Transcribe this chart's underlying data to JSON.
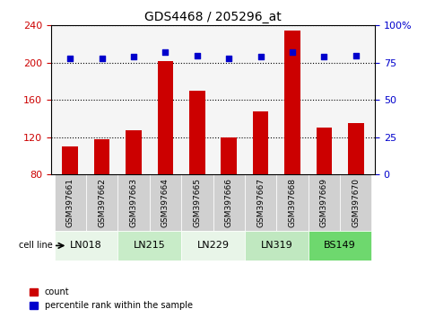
{
  "title": "GDS4468 / 205296_at",
  "samples": [
    "GSM397661",
    "GSM397662",
    "GSM397663",
    "GSM397664",
    "GSM397665",
    "GSM397666",
    "GSM397667",
    "GSM397668",
    "GSM397669",
    "GSM397670"
  ],
  "counts": [
    110,
    118,
    128,
    202,
    170,
    120,
    148,
    235,
    130,
    135
  ],
  "percentile_ranks": [
    78,
    78,
    79,
    82,
    80,
    78,
    79,
    82,
    79,
    80
  ],
  "cell_lines": [
    {
      "label": "LN018",
      "span": [
        0,
        2
      ],
      "color": "#e8f5e8"
    },
    {
      "label": "LN215",
      "span": [
        2,
        4
      ],
      "color": "#c8ecc8"
    },
    {
      "label": "LN229",
      "span": [
        4,
        6
      ],
      "color": "#e8f5e8"
    },
    {
      "label": "LN319",
      "span": [
        6,
        8
      ],
      "color": "#c0e8c0"
    },
    {
      "label": "BS149",
      "span": [
        8,
        10
      ],
      "color": "#6ed86e"
    }
  ],
  "ylim_left": [
    80,
    240
  ],
  "ylim_right": [
    0,
    100
  ],
  "yticks_left": [
    80,
    120,
    160,
    200,
    240
  ],
  "yticks_right": [
    0,
    25,
    50,
    75,
    100
  ],
  "bar_color": "#cc0000",
  "dot_color": "#0000cc",
  "background_plot": "#f5f5f5",
  "bar_width": 0.5,
  "cell_line_label": "cell line",
  "legend_count": "count",
  "legend_pct": "percentile rank within the sample"
}
